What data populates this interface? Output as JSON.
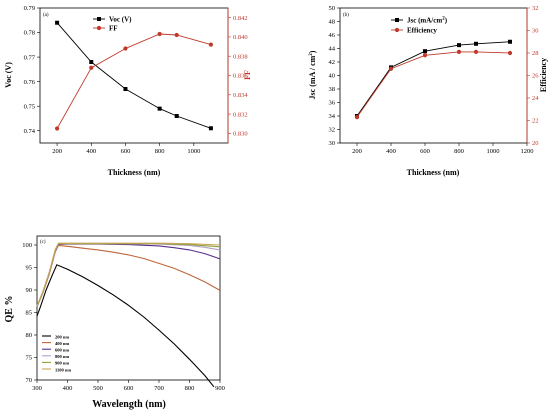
{
  "chart_data": [
    {
      "panel_label": "(a)",
      "type": "line",
      "xlabel": "Thickness (nm)",
      "ylabel": "Voc (V)",
      "y2label": "FF",
      "xlim": [
        100,
        1200
      ],
      "ylim": [
        0.735,
        0.79
      ],
      "y2lim": [
        0.829,
        0.843
      ],
      "xticks": [
        "200",
        "400",
        "600",
        "800",
        "1000"
      ],
      "yticks": [
        "0.74",
        "0.75",
        "0.76",
        "0.77",
        "0.78",
        "0.79"
      ],
      "y2ticks": [
        "0.830",
        "0.832",
        "0.834",
        "0.836",
        "0.838",
        "0.840",
        "0.842"
      ],
      "series": [
        {
          "name": "Voc (V)",
          "axis": "left",
          "color": "#000000",
          "marker": "square",
          "x": [
            200,
            400,
            600,
            800,
            900,
            1100
          ],
          "y": [
            0.784,
            0.768,
            0.757,
            0.749,
            0.746,
            0.741
          ]
        },
        {
          "name": "FF",
          "axis": "right",
          "color": "#c0392b",
          "marker": "circle",
          "x": [
            200,
            400,
            600,
            800,
            900,
            1100
          ],
          "y": [
            0.8305,
            0.8368,
            0.8388,
            0.8403,
            0.8402,
            0.8392
          ]
        }
      ]
    },
    {
      "panel_label": "(b)",
      "type": "line",
      "xlabel": "Thickness (nm)",
      "ylabel": "Jsc (mA / cm",
      "ylabel_sup": "2",
      "ylabel_end": ")",
      "y2label": "Efficiency",
      "xlim": [
        100,
        1200
      ],
      "ylim": [
        30,
        50
      ],
      "y2lim": [
        20,
        32
      ],
      "xticks": [
        "200",
        "400",
        "600",
        "800",
        "1000",
        "1200"
      ],
      "yticks": [
        "30",
        "32",
        "34",
        "36",
        "38",
        "40",
        "42",
        "44",
        "46",
        "48",
        "50"
      ],
      "y2ticks": [
        "20",
        "22",
        "24",
        "26",
        "28",
        "30",
        "32"
      ],
      "series": [
        {
          "name": "Jsc (mA/cm",
          "name_sup": "2",
          "name_end": ")",
          "axis": "left",
          "color": "#000000",
          "marker": "square",
          "x": [
            200,
            400,
            600,
            800,
            900,
            1100
          ],
          "y": [
            34,
            41.2,
            43.6,
            44.5,
            44.7,
            45.0
          ]
        },
        {
          "name": "Efficiency",
          "axis": "right",
          "color": "#c0392b",
          "marker": "circle",
          "x": [
            200,
            400,
            600,
            800,
            900,
            1100
          ],
          "y": [
            22.3,
            26.6,
            27.8,
            28.1,
            28.1,
            28.0
          ]
        }
      ]
    },
    {
      "panel_label": "(c)",
      "type": "line",
      "xlabel": "Wavelength (nm)",
      "ylabel": "QE %",
      "xlim": [
        300,
        900
      ],
      "ylim": [
        70,
        102
      ],
      "xticks": [
        "300",
        "400",
        "500",
        "600",
        "700",
        "800",
        "900"
      ],
      "yticks": [
        "70",
        "75",
        "80",
        "85",
        "90",
        "95",
        "100"
      ],
      "series": [
        {
          "name": "200 nm",
          "color": "#000000",
          "x": [
            300,
            310,
            330,
            350,
            365,
            400,
            450,
            500,
            550,
            600,
            650,
            700,
            750,
            800,
            850,
            880
          ],
          "y": [
            84.2,
            86.0,
            90.0,
            93.3,
            95.6,
            94.6,
            92.9,
            91.0,
            88.9,
            86.6,
            84.0,
            81.1,
            78.0,
            74.6,
            71.0,
            68.5
          ]
        },
        {
          "name": "400 nm",
          "color": "#c0653a",
          "x": [
            300,
            320,
            340,
            360,
            370,
            400,
            450,
            500,
            550,
            600,
            650,
            700,
            750,
            800,
            850,
            900
          ],
          "y": [
            86.3,
            89.5,
            93.5,
            98.5,
            99.9,
            99.7,
            99.3,
            98.9,
            98.4,
            97.8,
            97.0,
            95.9,
            94.8,
            93.4,
            91.8,
            89.9
          ]
        },
        {
          "name": "600 nm",
          "color": "#5a2d91",
          "x": [
            300,
            320,
            340,
            360,
            370,
            400,
            500,
            600,
            700,
            750,
            800,
            850,
            900
          ],
          "y": [
            86.3,
            89.6,
            93.7,
            98.7,
            100.1,
            100.2,
            100.2,
            100.1,
            99.8,
            99.4,
            98.9,
            98.1,
            96.9
          ]
        },
        {
          "name": "800 nm",
          "color": "#b8a0c8",
          "x": [
            300,
            320,
            340,
            360,
            370,
            400,
            500,
            600,
            700,
            800,
            850,
            900
          ],
          "y": [
            86.4,
            89.7,
            93.8,
            98.8,
            100.2,
            100.3,
            100.3,
            100.3,
            100.2,
            99.9,
            99.5,
            98.9
          ]
        },
        {
          "name": "900 nm",
          "color": "#8fa335",
          "x": [
            300,
            320,
            340,
            360,
            370,
            400,
            500,
            600,
            700,
            800,
            900
          ],
          "y": [
            86.4,
            89.7,
            93.8,
            98.9,
            100.3,
            100.3,
            100.3,
            100.3,
            100.3,
            100.1,
            99.6
          ]
        },
        {
          "name": "1100 nm",
          "color": "#c9a55a",
          "x": [
            300,
            320,
            340,
            360,
            370,
            400,
            500,
            600,
            700,
            800,
            900
          ],
          "y": [
            86.5,
            89.8,
            93.9,
            99.0,
            100.4,
            100.4,
            100.4,
            100.4,
            100.4,
            100.3,
            100.0
          ]
        }
      ]
    }
  ]
}
